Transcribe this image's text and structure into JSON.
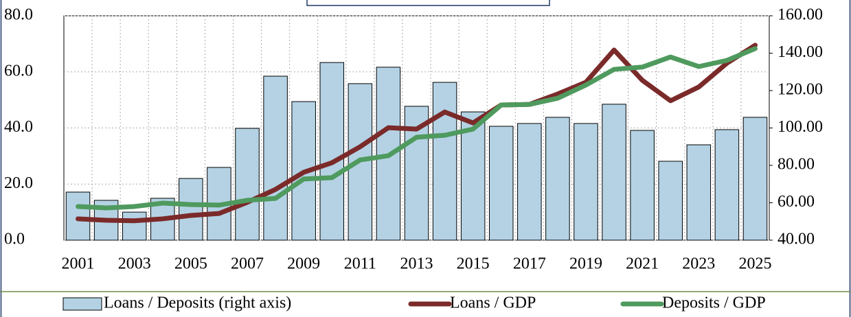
{
  "chart_data": {
    "type": "bar_line",
    "categories": [
      "2001",
      null,
      "2003",
      null,
      "2005",
      null,
      "2007",
      null,
      "2009",
      null,
      "2011",
      null,
      "2013",
      null,
      "2015",
      null,
      "2017",
      null,
      "2019",
      null,
      "2021",
      null,
      "2023",
      null,
      "2025"
    ],
    "series": [
      {
        "name": "Loans / Deposits (right axis)",
        "type": "bar",
        "axis": "y2",
        "color": "#b4d2e4",
        "values": [
          65.7,
          61.3,
          55,
          62.4,
          73.0,
          78.9,
          99.8,
          127.7,
          114.1,
          135.0,
          123.7,
          132.5,
          111.6,
          124.4,
          108.6,
          100.9,
          102.4,
          105.7,
          102.4,
          112.7,
          98.7,
          82.2,
          91.0,
          99.1,
          105.7
        ]
      },
      {
        "name": "Loans / GDP",
        "type": "line",
        "color": "#7b2a2a",
        "values": [
          7.6,
          7.1,
          6.9,
          7.6,
          8.8,
          9.5,
          13.5,
          18.1,
          24.2,
          27.6,
          33.3,
          40.1,
          39.6,
          45.7,
          41.8,
          48.2,
          48.4,
          52.1,
          56.3,
          67.8,
          57.0,
          49.7,
          54.6,
          63.1,
          69.5
        ]
      },
      {
        "name": "Deposits / GDP",
        "type": "line",
        "color": "#4f9a5e",
        "values": [
          12.0,
          11.5,
          12.0,
          13.2,
          12.7,
          12.5,
          14.2,
          14.9,
          21.8,
          22.3,
          28.6,
          30.1,
          36.7,
          37.4,
          39.6,
          48.2,
          48.4,
          50.6,
          55.3,
          60.9,
          61.7,
          65.3,
          61.9,
          64.1,
          68.3
        ]
      }
    ],
    "ylim": [
      0,
      80
    ],
    "yticks": [
      {
        "value": 0,
        "label": "0.0"
      },
      {
        "value": 20,
        "label": "20.0"
      },
      {
        "value": 40,
        "label": "40.0"
      },
      {
        "value": 60,
        "label": "60.0"
      },
      {
        "value": 80,
        "label": "80.0"
      }
    ],
    "y2lim": [
      40,
      160
    ],
    "y2ticks": [
      {
        "value": 40,
        "label": "40.00"
      },
      {
        "value": 60,
        "label": "60.00"
      },
      {
        "value": 80,
        "label": "80.00"
      },
      {
        "value": 100,
        "label": "100.00"
      },
      {
        "value": 120,
        "label": "120.00"
      },
      {
        "value": 140,
        "label": "140.00"
      },
      {
        "value": 160,
        "label": "160.00"
      }
    ],
    "grid": true,
    "legend": "bottom"
  }
}
